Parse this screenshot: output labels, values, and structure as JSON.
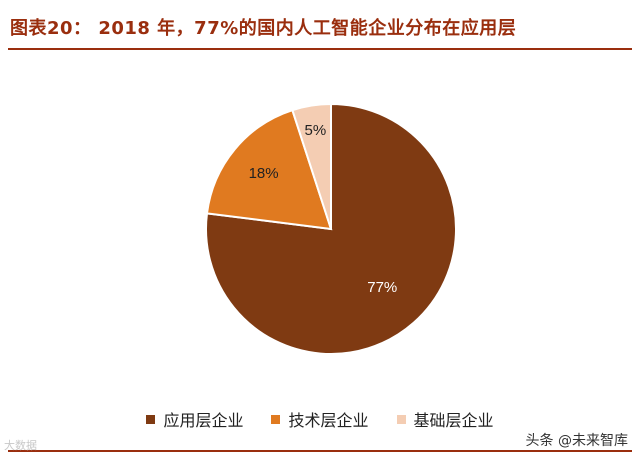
{
  "chart_data": {
    "type": "pie",
    "title": "图表20： 2018 年，77%的国内人工智能企业分布在应用层",
    "slices": [
      {
        "label": "应用层企业",
        "value": 77,
        "data_label": "77%",
        "color": "#7f3a12"
      },
      {
        "label": "技术层企业",
        "value": 18,
        "data_label": "18%",
        "color": "#e07a20"
      },
      {
        "label": "基础层企业",
        "value": 5,
        "data_label": "5%",
        "color": "#f4cdb3"
      }
    ],
    "legend_position": "bottom"
  },
  "watermarks": {
    "left": "大数据",
    "right": "头条 @未来智库"
  }
}
